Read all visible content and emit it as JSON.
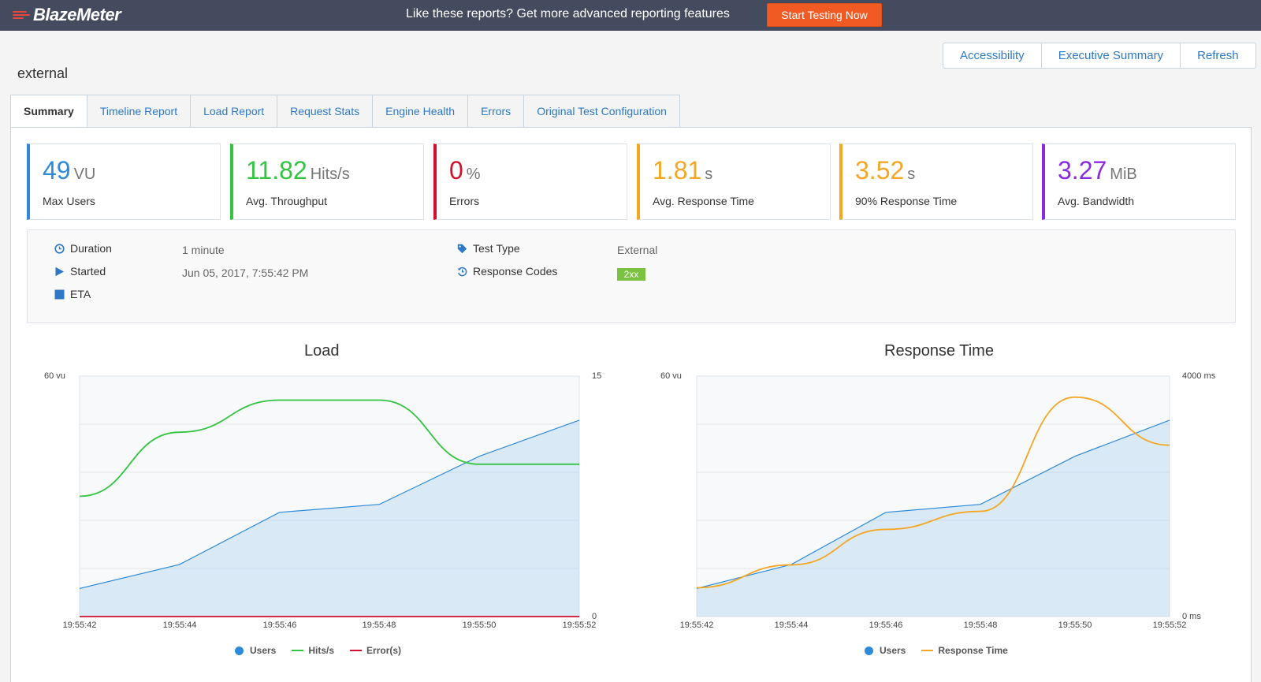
{
  "topbar": {
    "logo_text": "BlazeMeter",
    "promo": "Like these reports? Get more advanced reporting features",
    "cta": "Start Testing Now"
  },
  "header": {
    "title": "external",
    "actions": [
      "Accessibility",
      "Executive Summary",
      "Refresh"
    ]
  },
  "tabs": [
    "Summary",
    "Timeline Report",
    "Load Report",
    "Request Stats",
    "Engine Health",
    "Errors",
    "Original Test Configuration"
  ],
  "kpis": [
    {
      "value": "49",
      "unit": "VU",
      "label": "Max Users",
      "color": "#2e8bd9"
    },
    {
      "value": "11.82",
      "unit": "Hits/s",
      "label": "Avg. Throughput",
      "color": "#33c442"
    },
    {
      "value": "0",
      "unit": "%",
      "label": "Errors",
      "color": "#d0102d"
    },
    {
      "value": "1.81",
      "unit": "s",
      "label": "Avg. Response Time",
      "color": "#f5a623"
    },
    {
      "value": "3.52",
      "unit": "s",
      "label": "90% Response Time",
      "color": "#f5a623"
    },
    {
      "value": "3.27",
      "unit": "MiB",
      "label": "Avg. Bandwidth",
      "color": "#8a2be2"
    }
  ],
  "info": {
    "duration_label": "Duration",
    "duration_value": "1 minute",
    "started_label": "Started",
    "started_value": "Jun 05, 2017, 7:55:42 PM",
    "eta_label": "ETA",
    "test_type_label": "Test Type",
    "test_type_value": "External",
    "response_codes_label": "Response Codes",
    "response_code_badge": "2xx"
  },
  "chart_data": [
    {
      "type": "line",
      "title": "Load",
      "x": [
        "19:55:42",
        "19:55:44",
        "19:55:46",
        "19:55:48",
        "19:55:50",
        "19:55:52"
      ],
      "y_left_label": "60 vu",
      "y_right_top": "15",
      "y_right_bottom": "0",
      "ylim_left": [
        0,
        60
      ],
      "ylim_right": [
        0,
        15
      ],
      "series": [
        {
          "name": "Users",
          "axis": "left",
          "kind": "area",
          "color": "#2e8bd9",
          "values": [
            7,
            13,
            26,
            28,
            40,
            49
          ]
        },
        {
          "name": "Hits/s",
          "axis": "right",
          "kind": "line",
          "color": "#33c442",
          "values": [
            7.5,
            11.5,
            13.5,
            13.5,
            9.5,
            9.5
          ]
        },
        {
          "name": "Error(s)",
          "axis": "right",
          "kind": "line",
          "color": "#d0102d",
          "values": [
            0,
            0,
            0,
            0,
            0,
            0
          ]
        }
      ],
      "legend": "bottom"
    },
    {
      "type": "line",
      "title": "Response Time",
      "x": [
        "19:55:42",
        "19:55:44",
        "19:55:46",
        "19:55:48",
        "19:55:50",
        "19:55:52"
      ],
      "y_left_label": "60 vu",
      "y_right_top": "4000 ms",
      "y_right_bottom": "0 ms",
      "ylim_left": [
        0,
        60
      ],
      "ylim_right": [
        0,
        4000
      ],
      "series": [
        {
          "name": "Users",
          "axis": "left",
          "kind": "area",
          "color": "#2e8bd9",
          "values": [
            7,
            13,
            26,
            28,
            40,
            49
          ]
        },
        {
          "name": "Response Time",
          "axis": "right",
          "kind": "line",
          "color": "#f5a623",
          "values": [
            480,
            860,
            1450,
            1750,
            3650,
            2850
          ]
        }
      ],
      "legend": "bottom"
    }
  ]
}
